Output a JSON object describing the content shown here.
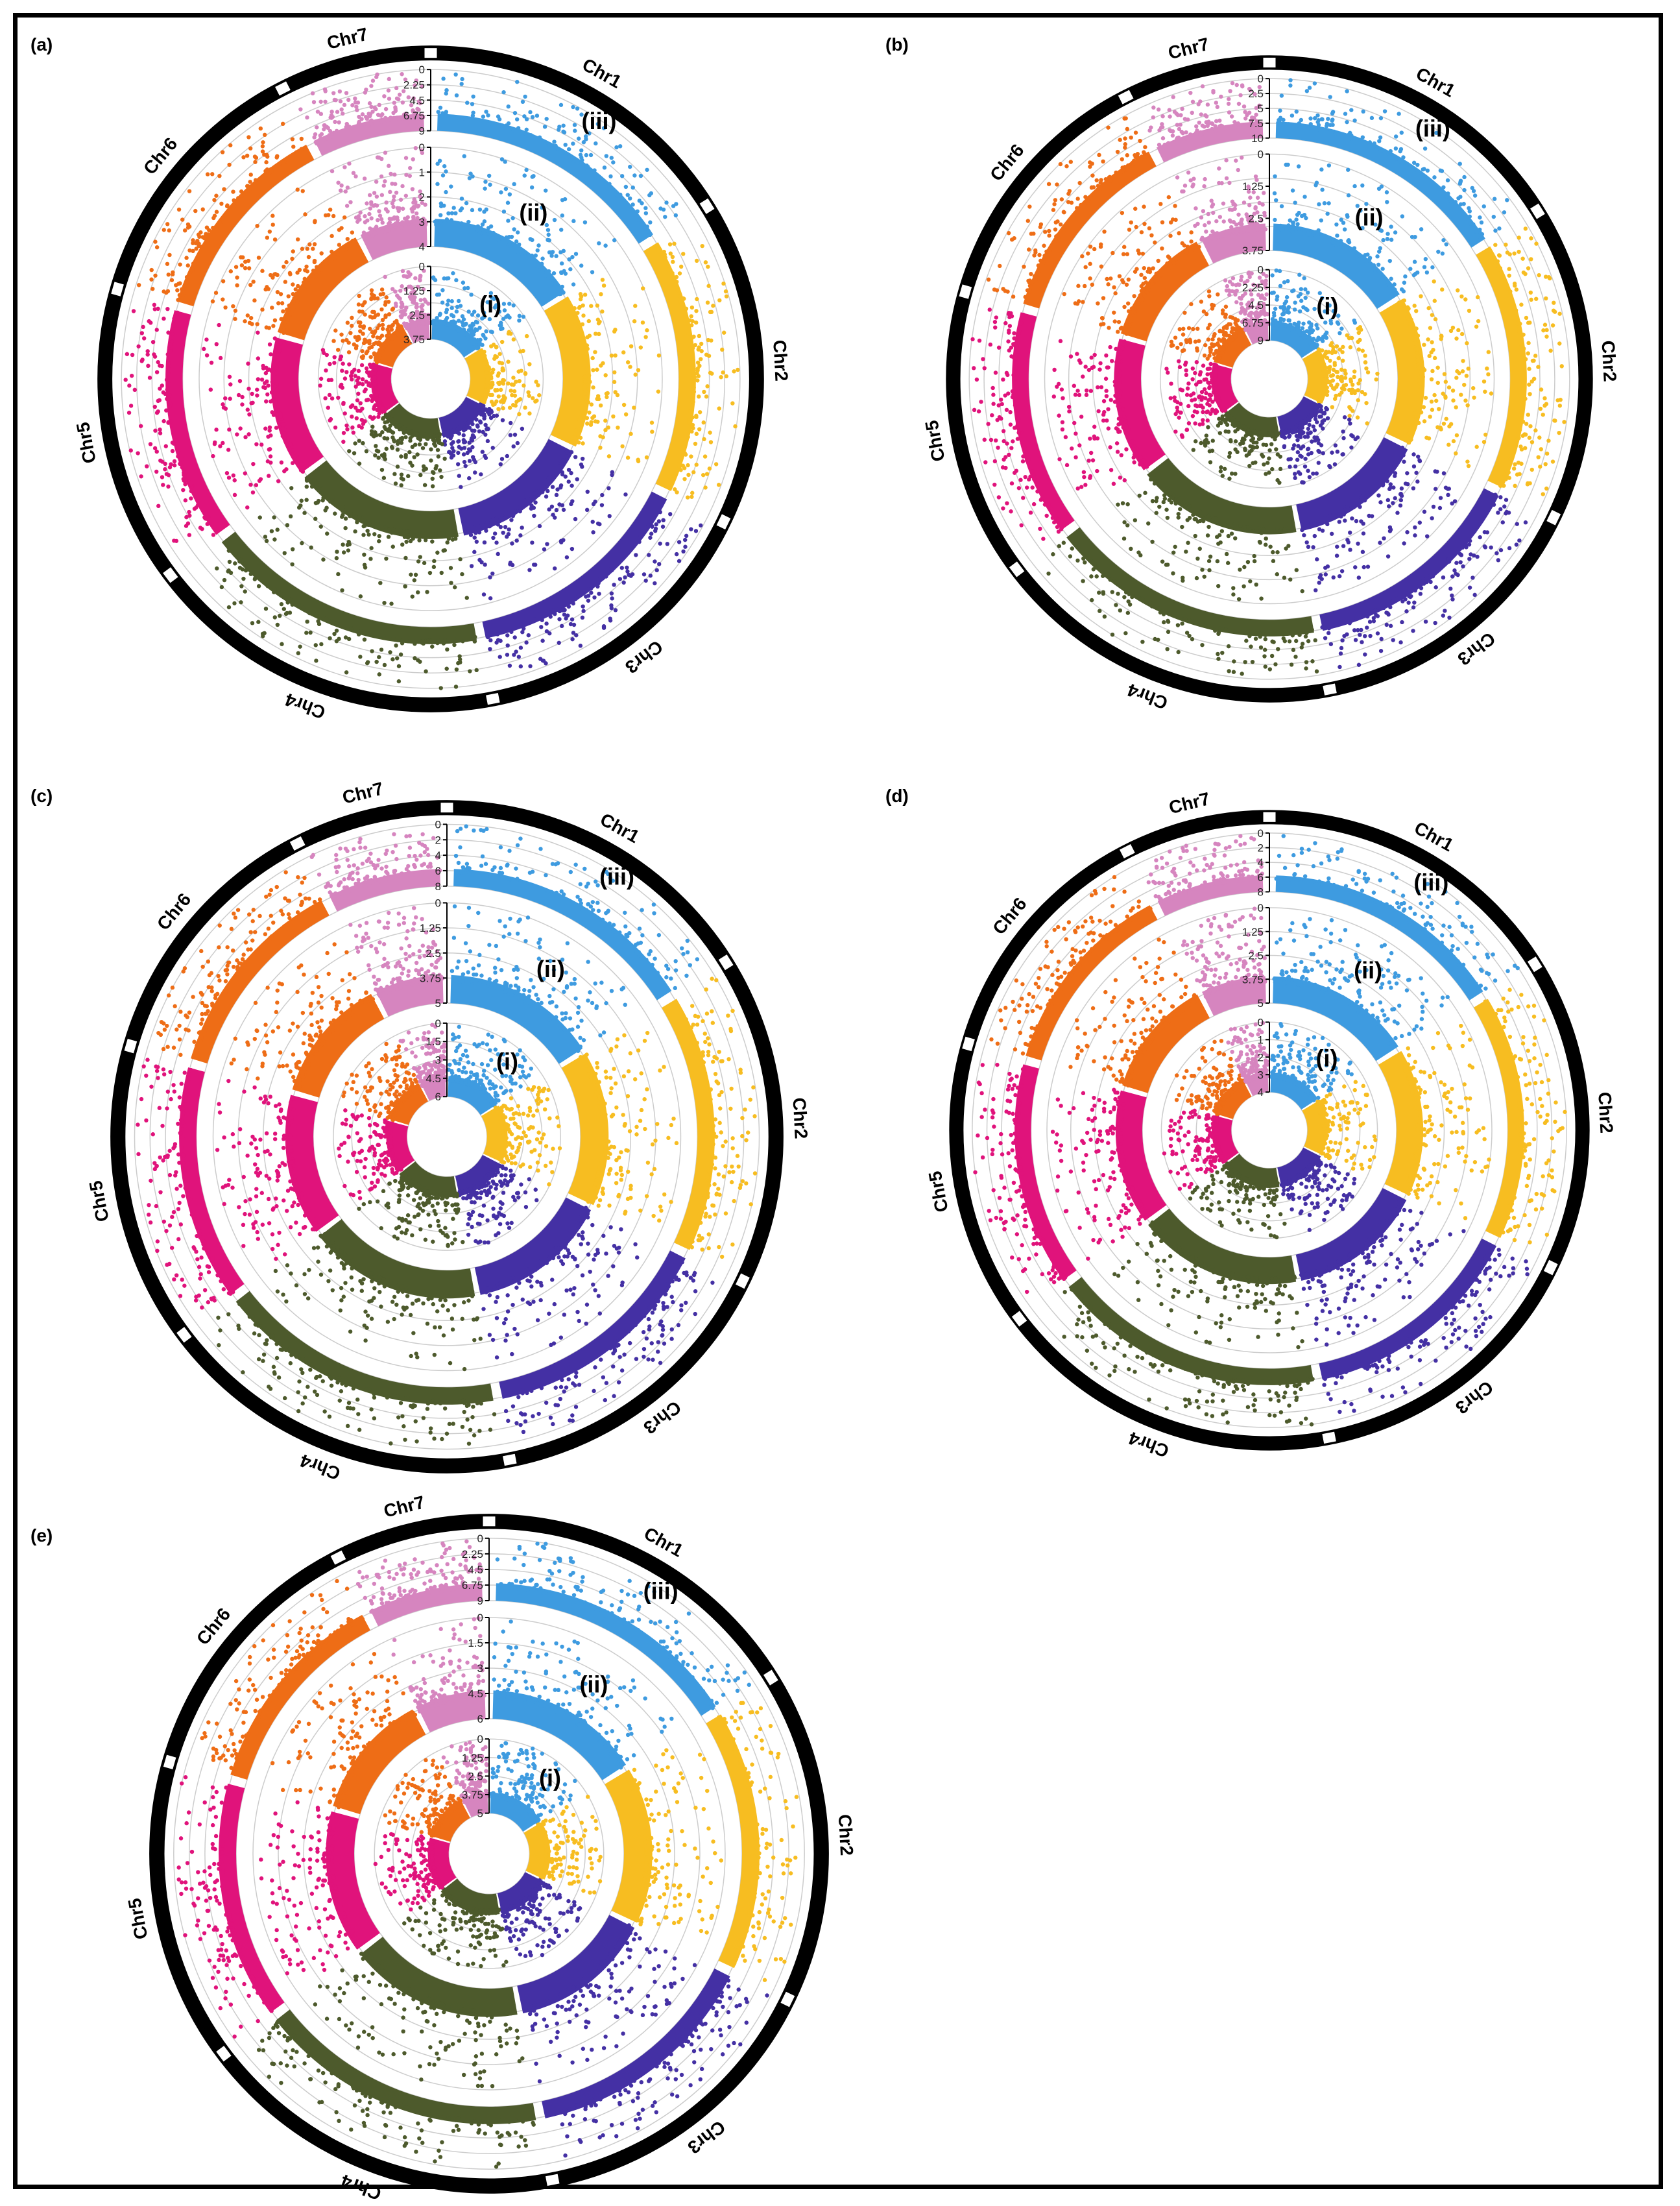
{
  "chromosomes": [
    "Chr1",
    "Chr2",
    "Chr3",
    "Chr4",
    "Chr5",
    "Chr6",
    "Chr7"
  ],
  "colors": {
    "Chr1": "#3e9be0",
    "Chr2": "#f7bd21",
    "Chr3": "#4430a4",
    "Chr4": "#4d5a2c",
    "Chr5": "#e0137b",
    "Chr6": "#ee6d16",
    "Chr7": "#d685bf",
    "ideogram": "#000000",
    "gap": "#ffffff",
    "grid": "#cccccc"
  },
  "ring_labels": [
    "(i)",
    "(ii)",
    "(iii)"
  ],
  "panels": [
    {
      "label": "(a)",
      "ticks": [
        [
          "0",
          "1.25",
          "2.5",
          "3.75"
        ],
        [
          "0",
          "1",
          "2",
          "3",
          "4"
        ],
        [
          "0",
          "2.25",
          "4.5",
          "6.75",
          "9"
        ]
      ]
    },
    {
      "label": "(b)",
      "ticks": [
        [
          "0",
          "2.25",
          "4.5",
          "6.75",
          "9"
        ],
        [
          "0",
          "1.25",
          "2.5",
          "3.75"
        ],
        [
          "0",
          "2.5",
          "5",
          "7.5",
          "10"
        ]
      ]
    },
    {
      "label": "(c)",
      "ticks": [
        [
          "0",
          "1.5",
          "3",
          "4.5",
          "6"
        ],
        [
          "0",
          "1.25",
          "2.5",
          "3.75",
          "5"
        ],
        [
          "0",
          "2",
          "4",
          "6",
          "8"
        ]
      ]
    },
    {
      "label": "(d)",
      "ticks": [
        [
          "0",
          "1",
          "2",
          "3",
          "4"
        ],
        [
          "0",
          "1.25",
          "2.5",
          "3.75",
          "5"
        ],
        [
          "0",
          "2",
          "4",
          "6",
          "8"
        ]
      ]
    },
    {
      "label": "(e)",
      "ticks": [
        [
          "0",
          "1.25",
          "2.5",
          "3.75",
          "5"
        ],
        [
          "0",
          "1.5",
          "3",
          "4.5",
          "6"
        ],
        [
          "0",
          "2.25",
          "4.5",
          "6.75",
          "9"
        ]
      ]
    }
  ],
  "chart_data": [
    {
      "type": "scatter",
      "panel": "(a)",
      "subtype": "circular manhattan plot",
      "series": [
        "(i)",
        "(ii)",
        "(iii)"
      ],
      "categories": [
        "Chr1",
        "Chr2",
        "Chr3",
        "Chr4",
        "Chr5",
        "Chr6",
        "Chr7"
      ],
      "ring_scales": [
        [
          0,
          3.75
        ],
        [
          0,
          4
        ],
        [
          0,
          9
        ]
      ]
    },
    {
      "type": "scatter",
      "panel": "(b)",
      "subtype": "circular manhattan plot",
      "series": [
        "(i)",
        "(ii)",
        "(iii)"
      ],
      "categories": [
        "Chr1",
        "Chr2",
        "Chr3",
        "Chr4",
        "Chr5",
        "Chr6",
        "Chr7"
      ],
      "ring_scales": [
        [
          0,
          9
        ],
        [
          0,
          3.75
        ],
        [
          0,
          10
        ]
      ]
    },
    {
      "type": "scatter",
      "panel": "(c)",
      "subtype": "circular manhattan plot",
      "series": [
        "(i)",
        "(ii)",
        "(iii)"
      ],
      "categories": [
        "Chr1",
        "Chr2",
        "Chr3",
        "Chr4",
        "Chr5",
        "Chr6",
        "Chr7"
      ],
      "ring_scales": [
        [
          0,
          6
        ],
        [
          0,
          5
        ],
        [
          0,
          8
        ]
      ]
    },
    {
      "type": "scatter",
      "panel": "(d)",
      "subtype": "circular manhattan plot",
      "series": [
        "(i)",
        "(ii)",
        "(iii)"
      ],
      "categories": [
        "Chr1",
        "Chr2",
        "Chr3",
        "Chr4",
        "Chr5",
        "Chr6",
        "Chr7"
      ],
      "ring_scales": [
        [
          0,
          4
        ],
        [
          0,
          5
        ],
        [
          0,
          8
        ]
      ]
    },
    {
      "type": "scatter",
      "panel": "(e)",
      "subtype": "circular manhattan plot",
      "series": [
        "(i)",
        "(ii)",
        "(iii)"
      ],
      "categories": [
        "Chr1",
        "Chr2",
        "Chr3",
        "Chr4",
        "Chr5",
        "Chr6",
        "Chr7"
      ],
      "ring_scales": [
        [
          0,
          5
        ],
        [
          0,
          6
        ],
        [
          0,
          9
        ]
      ]
    }
  ]
}
